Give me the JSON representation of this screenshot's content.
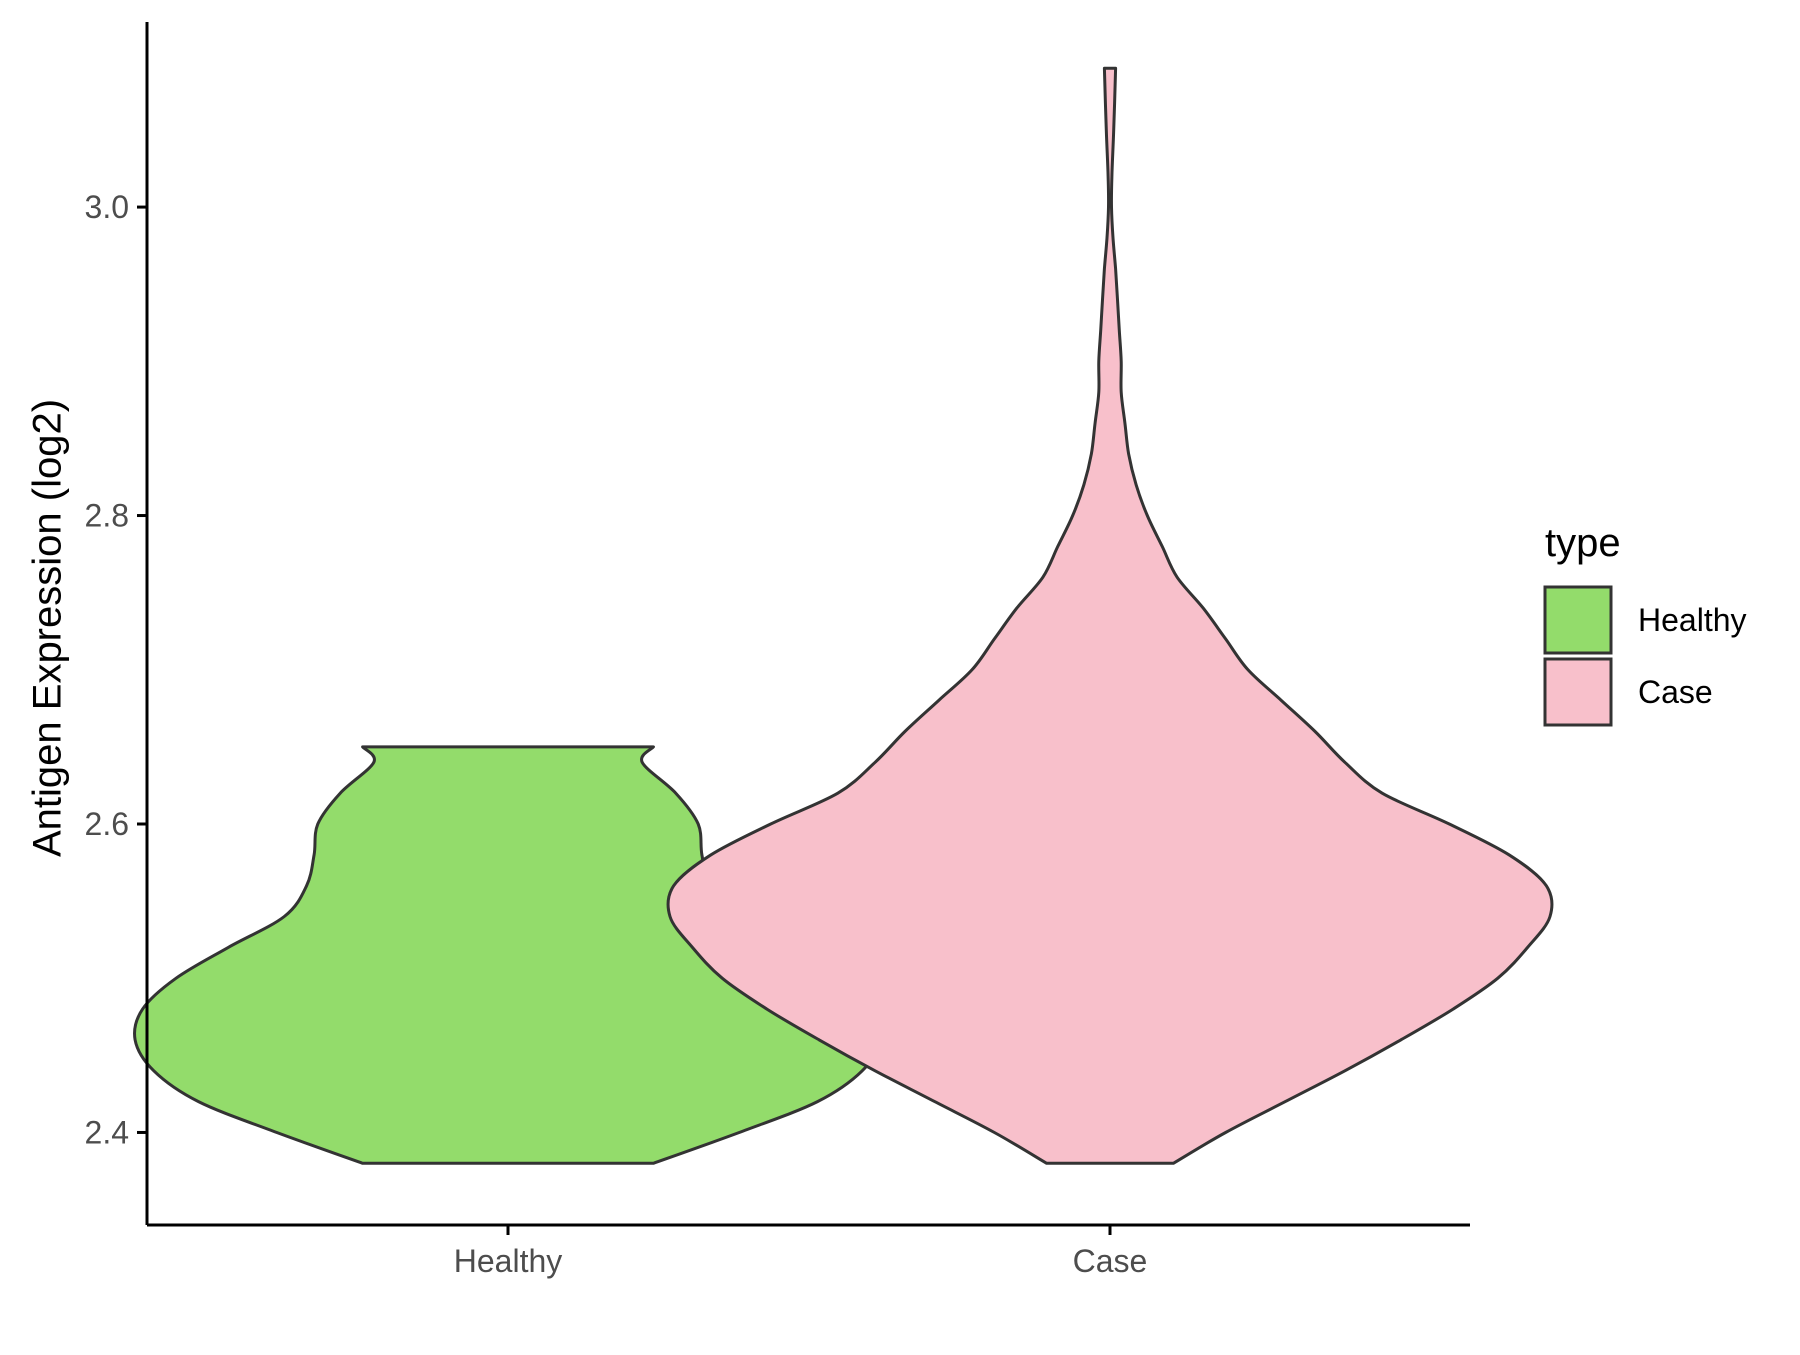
{
  "chart_data": {
    "type": "violin",
    "title": "",
    "xlabel": "",
    "ylabel": "Antigen Expression (log2)",
    "categories": [
      "Healthy",
      "Case"
    ],
    "ylim": [
      2.34,
      3.12
    ],
    "yticks": [
      2.4,
      2.6,
      2.8,
      3.0
    ],
    "ytick_labels": [
      "2.4",
      "2.6",
      "2.8",
      "3.0"
    ],
    "grid": false,
    "legend": {
      "title": "type",
      "placement": "right",
      "entries": [
        {
          "label": "Healthy",
          "color": "#93dc6b"
        },
        {
          "label": "Case",
          "color": "#f8c0cb"
        }
      ]
    },
    "series": [
      {
        "name": "Healthy",
        "color": "#93dc6b",
        "min": 2.38,
        "max": 2.65,
        "density": [
          [
            2.38,
            0.39
          ],
          [
            2.4,
            0.62
          ],
          [
            2.42,
            0.83
          ],
          [
            2.44,
            0.95
          ],
          [
            2.46,
            1.0
          ],
          [
            2.48,
            0.98
          ],
          [
            2.5,
            0.89
          ],
          [
            2.52,
            0.75
          ],
          [
            2.54,
            0.6
          ],
          [
            2.56,
            0.54
          ],
          [
            2.58,
            0.52
          ],
          [
            2.6,
            0.51
          ],
          [
            2.62,
            0.45
          ],
          [
            2.64,
            0.36
          ],
          [
            2.65,
            0.39
          ]
        ]
      },
      {
        "name": "Case",
        "color": "#f8c0cb",
        "min": 2.38,
        "max": 3.09,
        "density": [
          [
            2.38,
            0.17
          ],
          [
            2.4,
            0.31
          ],
          [
            2.42,
            0.47
          ],
          [
            2.44,
            0.63
          ],
          [
            2.46,
            0.78
          ],
          [
            2.48,
            0.92
          ],
          [
            2.5,
            1.04
          ],
          [
            2.52,
            1.12
          ],
          [
            2.54,
            1.18
          ],
          [
            2.56,
            1.17
          ],
          [
            2.58,
            1.07
          ],
          [
            2.6,
            0.91
          ],
          [
            2.62,
            0.73
          ],
          [
            2.64,
            0.63
          ],
          [
            2.66,
            0.55
          ],
          [
            2.68,
            0.46
          ],
          [
            2.7,
            0.37
          ],
          [
            2.72,
            0.31
          ],
          [
            2.74,
            0.25
          ],
          [
            2.76,
            0.18
          ],
          [
            2.78,
            0.14
          ],
          [
            2.8,
            0.1
          ],
          [
            2.82,
            0.07
          ],
          [
            2.84,
            0.05
          ],
          [
            2.86,
            0.04
          ],
          [
            2.88,
            0.03
          ],
          [
            2.9,
            0.03
          ],
          [
            2.92,
            0.025
          ],
          [
            2.94,
            0.02
          ],
          [
            2.96,
            0.015
          ],
          [
            2.98,
            0.008
          ],
          [
            3.0,
            0.004
          ],
          [
            3.02,
            0.005
          ],
          [
            3.05,
            0.01
          ],
          [
            3.09,
            0.015
          ]
        ]
      }
    ]
  }
}
